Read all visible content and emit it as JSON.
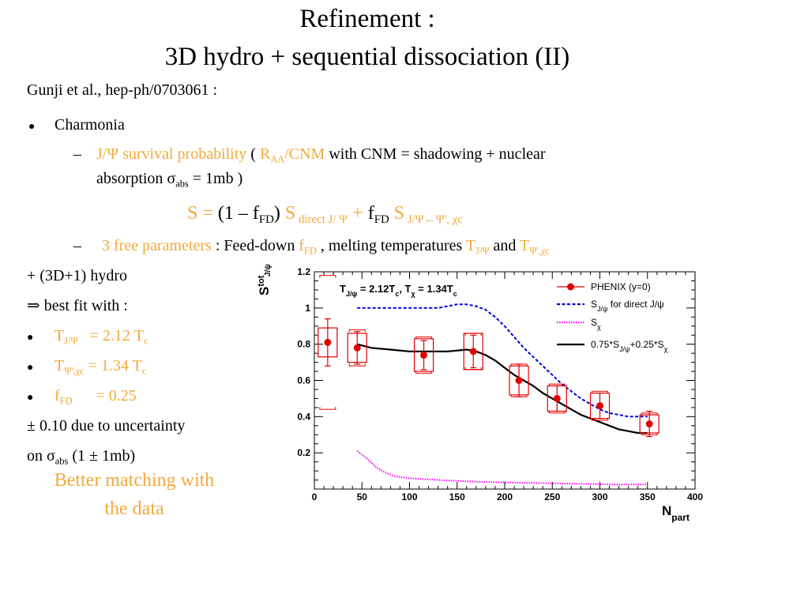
{
  "slide": {
    "title_line1": "Refinement :",
    "title_line2": "3D hydro + sequential dissociation (II)",
    "reference": "Gunji et al., hep-ph/0703061 :",
    "bullet_charmonia": "Charmonia",
    "survival": {
      "label": "J/Ψ survival probability",
      "paren_open": " ( ",
      "raa_R": "R",
      "raa_sub": "AA",
      "cnm": "/CNM",
      "rest": " with CNM = shadowing + nuclear",
      "line2_a": "absorption σ",
      "line2_sub": "abs",
      "line2_b": " = 1mb )"
    },
    "formula": {
      "s_eq": "S = ",
      "part1": "(1 – f",
      "fd": "FD",
      "part2": ")",
      "s1": " S",
      "s1_sub": " direct J/ Ψ",
      "plus": " + ",
      "f2": "f",
      "f2_sub": "FD",
      "s2": " S",
      "s2_sub": " J/Ψ←Ψ', χc"
    },
    "params": {
      "free": "3 free parameters",
      "feed": " : Feed-down ",
      "f": "f",
      "f_sub": "FD",
      "melting": " , melting temperatures ",
      "t1": "T",
      "t1_sub": "J/Ψ",
      "and": " and ",
      "t2": "T",
      "t2_sub": "Ψ',χc"
    },
    "hydro": "+ (3D+1) hydro",
    "bestfit": "⇒ best fit with :",
    "fit1": {
      "t": "T",
      "sub": "J/Ψ",
      "eq": "   = 2.12 T",
      "c": "c"
    },
    "fit2": {
      "t": "T",
      "sub": "Ψ',χc",
      "eq": " = 1.34 T",
      "c": "c"
    },
    "fit3": {
      "f": "f",
      "sub": "FD",
      "eq": "      = 0.25"
    },
    "uncert1": "± 0.10 due to uncertainty",
    "uncert2_a": "on σ",
    "uncert2_sub": "abs",
    "uncert2_b": " (1 ± 1mb)",
    "better1": "Better matching with",
    "better2": "the data"
  },
  "chart_data": {
    "type": "line",
    "ylabel": "S",
    "ylabel_sup": "tot",
    "ylabel_sub": "J/ψ",
    "xlabel": "N",
    "xlabel_sub": "part",
    "xlim": [
      0,
      400
    ],
    "ylim": [
      0,
      1.2
    ],
    "x_ticks": [
      0,
      50,
      100,
      150,
      200,
      250,
      300,
      350,
      400
    ],
    "y_ticks": [
      0.2,
      0.4,
      0.6,
      0.8,
      1,
      1.2
    ],
    "annotation": "T_{J/ψ} = 2.12T_c, T_χ = 1.34T_c",
    "annotation_parts": {
      "a": "T",
      "a_sub": "J/ψ",
      "b": " = 2.12T",
      "b_sub": "c",
      "c": ", T",
      "c_sub": "χ",
      "d": " = 1.34T",
      "d_sub": "c"
    },
    "legend": [
      {
        "label": "PHENIX (y=0)",
        "style": "marker",
        "color": "#e00000"
      },
      {
        "label": "S",
        "label_sub": "J/ψ",
        "label_rest": " for direct J/ψ",
        "style": "dashed",
        "color": "#0000dd"
      },
      {
        "label": "S",
        "label_sub": "χ",
        "label_rest": "",
        "style": "dotted",
        "color": "#ff00ff"
      },
      {
        "label": "0.75*S",
        "label_sub": "J/ψ",
        "label_rest": "+0.25*S",
        "label_sub2": "χ",
        "style": "solid",
        "color": "#000000"
      }
    ],
    "legend_position": "top-right",
    "phenix": [
      {
        "x": 14,
        "y": 0.81,
        "stat": 0.13,
        "sys": 0.08,
        "global": 0.37
      },
      {
        "x": 45,
        "y": 0.78,
        "stat": 0.09,
        "sys": 0.08,
        "global": 0.1
      },
      {
        "x": 115,
        "y": 0.74,
        "stat": 0.08,
        "sys": 0.09,
        "global": 0.1
      },
      {
        "x": 167,
        "y": 0.76,
        "stat": 0.09,
        "sys": 0.1,
        "global": 0.1
      },
      {
        "x": 215,
        "y": 0.6,
        "stat": 0.09,
        "sys": 0.08,
        "global": 0.09
      },
      {
        "x": 255,
        "y": 0.5,
        "stat": 0.07,
        "sys": 0.07,
        "global": 0.08
      },
      {
        "x": 300,
        "y": 0.46,
        "stat": 0.07,
        "sys": 0.07,
        "global": 0.08
      },
      {
        "x": 352,
        "y": 0.36,
        "stat": 0.07,
        "sys": 0.05,
        "global": 0.06
      }
    ],
    "series": [
      {
        "name": "S_{J/ψ} for direct J/ψ",
        "color": "#0000dd",
        "style": "dashed",
        "x": [
          45,
          60,
          80,
          100,
          120,
          130,
          140,
          150,
          160,
          170,
          180,
          190,
          200,
          210,
          220,
          230,
          240,
          250,
          260,
          270,
          280,
          290,
          300,
          310,
          320,
          330,
          340,
          350
        ],
        "y": [
          1.0,
          1.0,
          1.0,
          1.0,
          1.0,
          1.0,
          1.01,
          1.02,
          1.02,
          1.01,
          0.99,
          0.95,
          0.9,
          0.84,
          0.78,
          0.73,
          0.68,
          0.63,
          0.58,
          0.54,
          0.5,
          0.47,
          0.44,
          0.42,
          0.41,
          0.4,
          0.4,
          0.4
        ]
      },
      {
        "name": "S_χ",
        "color": "#ff00ff",
        "style": "dotted",
        "x": [
          45,
          55,
          65,
          75,
          85,
          100,
          130,
          170,
          220,
          270,
          320,
          350
        ],
        "y": [
          0.21,
          0.17,
          0.12,
          0.09,
          0.07,
          0.06,
          0.05,
          0.04,
          0.035,
          0.03,
          0.025,
          0.025
        ]
      },
      {
        "name": "0.75*S_{J/ψ}+0.25*S_χ",
        "color": "#000000",
        "style": "solid",
        "x": [
          45,
          60,
          80,
          100,
          120,
          140,
          160,
          170,
          180,
          190,
          200,
          210,
          220,
          230,
          240,
          250,
          260,
          270,
          280,
          290,
          300,
          310,
          320,
          330,
          340,
          350
        ],
        "y": [
          0.8,
          0.78,
          0.77,
          0.76,
          0.76,
          0.76,
          0.77,
          0.76,
          0.74,
          0.71,
          0.67,
          0.63,
          0.6,
          0.57,
          0.53,
          0.5,
          0.47,
          0.44,
          0.41,
          0.39,
          0.37,
          0.35,
          0.33,
          0.32,
          0.31,
          0.31
        ]
      }
    ]
  }
}
